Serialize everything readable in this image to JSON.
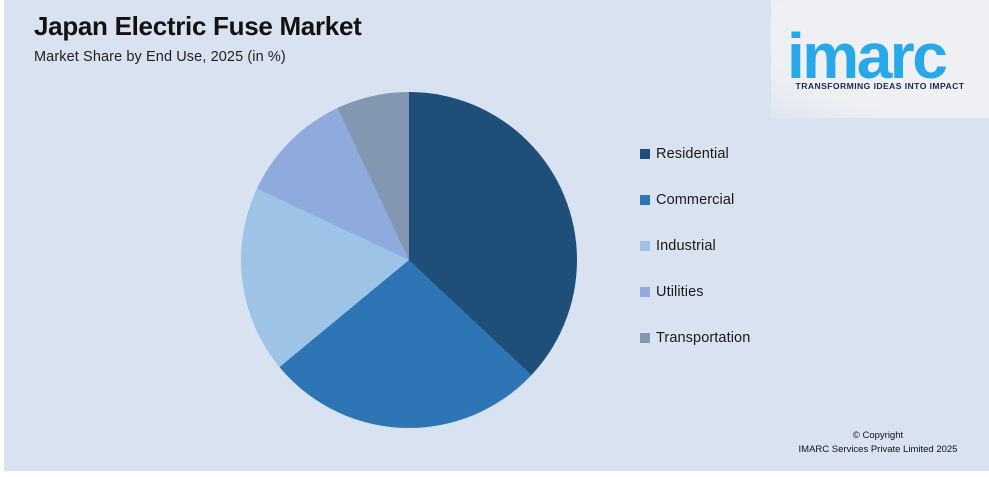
{
  "header": {
    "title": "Japan Electric Fuse Market",
    "subtitle": "Market Share by End Use, 2025 (in %)"
  },
  "logo": {
    "wordmark": "imarc",
    "tagline": "TRANSFORMING IDEAS INTO IMPACT"
  },
  "footer": {
    "copyright_line1": "© Copyright",
    "copyright_line2": "IMARC Services Private Limited 2025"
  },
  "colors": {
    "background": "#d9e2f1",
    "edge": "#ffffff",
    "brand_blue": "#28a7e9",
    "tagline_navy": "#1b2a4d",
    "text": "#1a1a1a"
  },
  "chart_data": {
    "type": "pie",
    "title": "Japan Electric Fuse Market",
    "subtitle": "Market Share by End Use, 2025 (in %)",
    "unit": "%",
    "categories": [
      "Residential",
      "Commercial",
      "Industrial",
      "Utilities",
      "Transportation"
    ],
    "values": [
      37,
      27,
      18,
      11,
      7
    ],
    "colors": [
      "#1f4e79",
      "#2e75b6",
      "#9dc3e6",
      "#8faadc",
      "#8497b0"
    ],
    "start_angle_deg": 0,
    "direction": "clockwise",
    "legend_position": "right",
    "data_labels": false
  }
}
